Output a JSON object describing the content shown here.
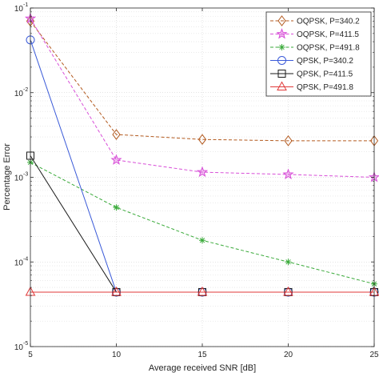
{
  "chart_data": {
    "type": "line",
    "xlabel": "Average received SNR [dB]",
    "ylabel": "Percentage Error",
    "xlim": [
      5,
      25
    ],
    "ylim": [
      1e-05,
      0.1
    ],
    "yscale": "log",
    "grid": true,
    "legend_position": "top-right",
    "x_ticks": [
      "5",
      "10",
      "15",
      "20",
      "25"
    ],
    "y_ticks": [
      {
        "base": "10",
        "exp": "-5",
        "value": 1e-05
      },
      {
        "base": "10",
        "exp": "-4",
        "value": 0.0001
      },
      {
        "base": "10",
        "exp": "-3",
        "value": 0.001
      },
      {
        "base": "10",
        "exp": "-2",
        "value": 0.01
      },
      {
        "base": "10",
        "exp": "-1",
        "value": 0.1
      }
    ],
    "series": [
      {
        "name": "OQPSK, P=340.2",
        "color": "#b35a1f",
        "dash": "dashed",
        "marker": "diamond",
        "x": [
          5,
          10,
          15,
          20,
          25
        ],
        "y": [
          0.07,
          0.0032,
          0.0028,
          0.0027,
          0.0027
        ]
      },
      {
        "name": "OQPSK, P=411.5",
        "color": "#d84fd8",
        "dash": "dashed",
        "marker": "star",
        "x": [
          5,
          10,
          15,
          20,
          25
        ],
        "y": [
          0.075,
          0.0016,
          0.00115,
          0.00108,
          0.001
        ]
      },
      {
        "name": "OQPSK, P=491.8",
        "color": "#3aaa3a",
        "dash": "dashed",
        "marker": "asterisk",
        "x": [
          5,
          10,
          15,
          20,
          25
        ],
        "y": [
          0.0015,
          0.00044,
          0.00018,
          0.0001,
          5.5e-05
        ]
      },
      {
        "name": "QPSK, P=340.2",
        "color": "#3a5ad8",
        "dash": "solid",
        "marker": "circle",
        "x": [
          5,
          10,
          15,
          20,
          25
        ],
        "y": [
          0.042,
          4.4e-05,
          4.4e-05,
          4.4e-05,
          4.4e-05
        ]
      },
      {
        "name": "QPSK, P=411.5",
        "color": "#1a1a1a",
        "dash": "solid",
        "marker": "square",
        "x": [
          5,
          10,
          15,
          20,
          25
        ],
        "y": [
          0.0018,
          4.4e-05,
          4.4e-05,
          4.4e-05,
          4.4e-05
        ]
      },
      {
        "name": "QPSK, P=491.8",
        "color": "#e03a3a",
        "dash": "solid",
        "marker": "triangle",
        "x": [
          5,
          10,
          15,
          20,
          25
        ],
        "y": [
          4.4e-05,
          4.4e-05,
          4.4e-05,
          4.4e-05,
          4.4e-05
        ]
      }
    ]
  }
}
